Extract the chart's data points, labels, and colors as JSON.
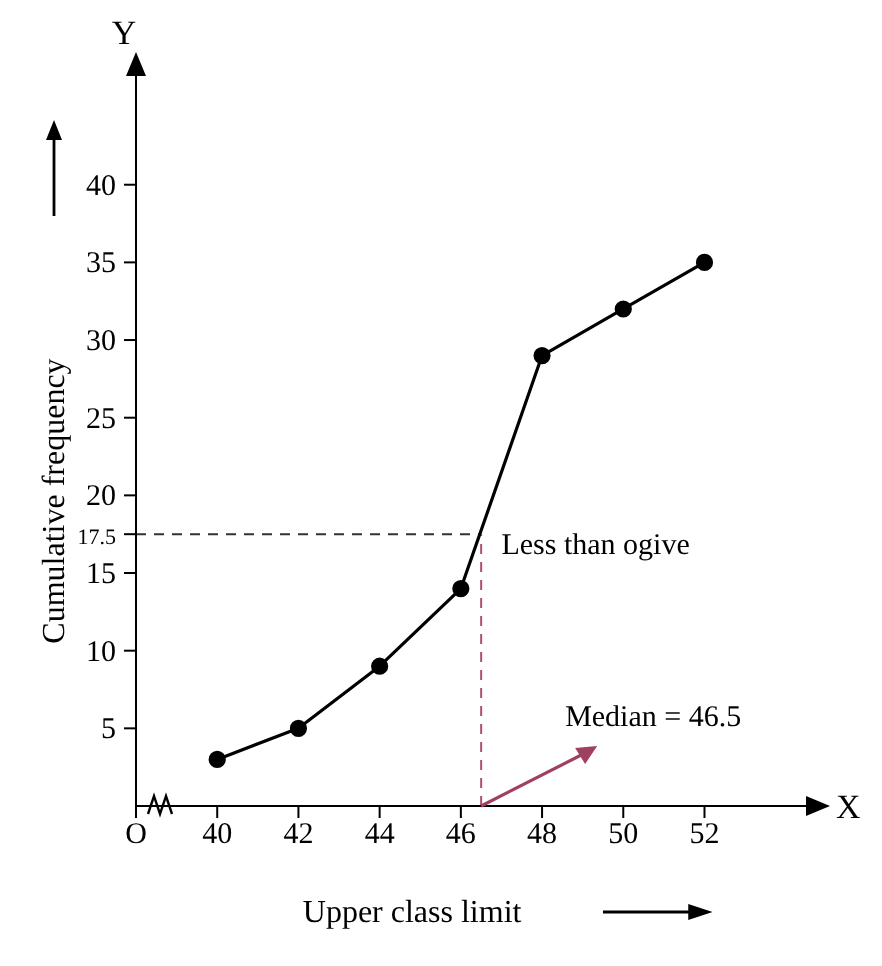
{
  "chart_data": {
    "type": "line",
    "xlabel": "Upper class limit",
    "ylabel": "Cumulative frequency",
    "x": [
      40,
      42,
      44,
      46,
      48,
      50,
      52
    ],
    "series": [
      {
        "name": "Less than ogive",
        "color": "#000000",
        "values": [
          3,
          5,
          9,
          14,
          29,
          32,
          35
        ]
      }
    ],
    "xlim": [
      38,
      54.5
    ],
    "xticks": [
      {
        "value": 38,
        "label": "O"
      },
      40,
      42,
      44,
      46,
      48,
      50,
      52
    ],
    "ylim": [
      0,
      47
    ],
    "yticks": [
      5,
      10,
      15,
      {
        "value": 17.5,
        "label": "17.5"
      },
      20,
      25,
      30,
      35,
      40
    ],
    "ref_lines": [
      {
        "axis": "y",
        "value": 17.5,
        "color": "#333333",
        "line_style": "dashed"
      },
      {
        "axis": "x",
        "value": 46.5,
        "color": "#b0506a",
        "line_style": "dashed"
      }
    ],
    "annotations": [
      {
        "text": "Median = 46.5",
        "x": 46.5,
        "y": 0
      },
      "X",
      "Y"
    ],
    "marker": "circle",
    "line_style": "solid"
  }
}
